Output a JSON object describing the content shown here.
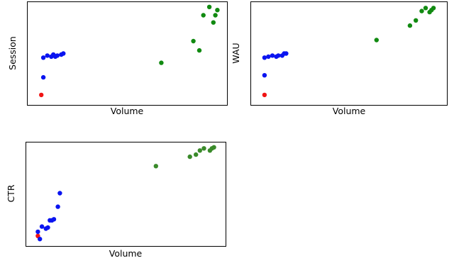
{
  "colors": {
    "blue": "#0a14f0",
    "green": "#118a11",
    "olive": "#3a8a2a",
    "red": "#f01414"
  },
  "chart_data": [
    {
      "type": "scatter",
      "title": "",
      "xlabel": "Volume",
      "ylabel": "Session",
      "xlim": [
        0,
        100
      ],
      "ylim": [
        0,
        100
      ],
      "grid": false,
      "series": [
        {
          "color": "red",
          "points": [
            [
              7,
              10
            ]
          ]
        },
        {
          "color": "blue",
          "points": [
            [
              8,
              27
            ],
            [
              8,
              46
            ],
            [
              10,
              48
            ],
            [
              12,
              47
            ],
            [
              13,
              49
            ],
            [
              14,
              47
            ],
            [
              15,
              48
            ],
            [
              17,
              49
            ],
            [
              18,
              50
            ]
          ]
        },
        {
          "color": "green",
          "points": [
            [
              67,
              41
            ],
            [
              83,
              62
            ],
            [
              86,
              53
            ],
            [
              88,
              87
            ],
            [
              91,
              95
            ],
            [
              93,
              80
            ],
            [
              94,
              87
            ],
            [
              95,
              92
            ]
          ]
        }
      ]
    },
    {
      "type": "scatter",
      "title": "",
      "xlabel": "Volume",
      "ylabel": "WAU",
      "xlim": [
        0,
        100
      ],
      "ylim": [
        0,
        100
      ],
      "grid": false,
      "series": [
        {
          "color": "red",
          "points": [
            [
              7,
              10
            ]
          ]
        },
        {
          "color": "blue",
          "points": [
            [
              7,
              29
            ],
            [
              7,
              46
            ],
            [
              9,
              47
            ],
            [
              11,
              48
            ],
            [
              13,
              47
            ],
            [
              14,
              48
            ],
            [
              16,
              48
            ],
            [
              17,
              50
            ],
            [
              18,
              50
            ]
          ]
        },
        {
          "color": "green",
          "points": [
            [
              64,
              63
            ],
            [
              81,
              77
            ],
            [
              84,
              82
            ],
            [
              87,
              91
            ],
            [
              89,
              94
            ],
            [
              91,
              90
            ],
            [
              92,
              92
            ],
            [
              93,
              94
            ]
          ]
        }
      ]
    },
    {
      "type": "scatter",
      "title": "",
      "xlabel": "Volume",
      "ylabel": "CTR",
      "xlim": [
        0,
        100
      ],
      "ylim": [
        0,
        100
      ],
      "grid": false,
      "series": [
        {
          "color": "red",
          "points": [
            [
              6,
              10
            ]
          ]
        },
        {
          "color": "blue",
          "points": [
            [
              6,
              14
            ],
            [
              7,
              7
            ],
            [
              8,
              19
            ],
            [
              10,
              17
            ],
            [
              11,
              18
            ],
            [
              12,
              25
            ],
            [
              13,
              25
            ],
            [
              14,
              26
            ],
            [
              16,
              38
            ],
            [
              17,
              51
            ]
          ]
        },
        {
          "color": "olive",
          "points": [
            [
              65,
              77
            ],
            [
              82,
              86
            ],
            [
              85,
              88
            ],
            [
              87,
              92
            ],
            [
              89,
              94
            ],
            [
              92,
              92
            ],
            [
              93,
              94
            ],
            [
              94,
              95
            ]
          ]
        }
      ]
    }
  ]
}
